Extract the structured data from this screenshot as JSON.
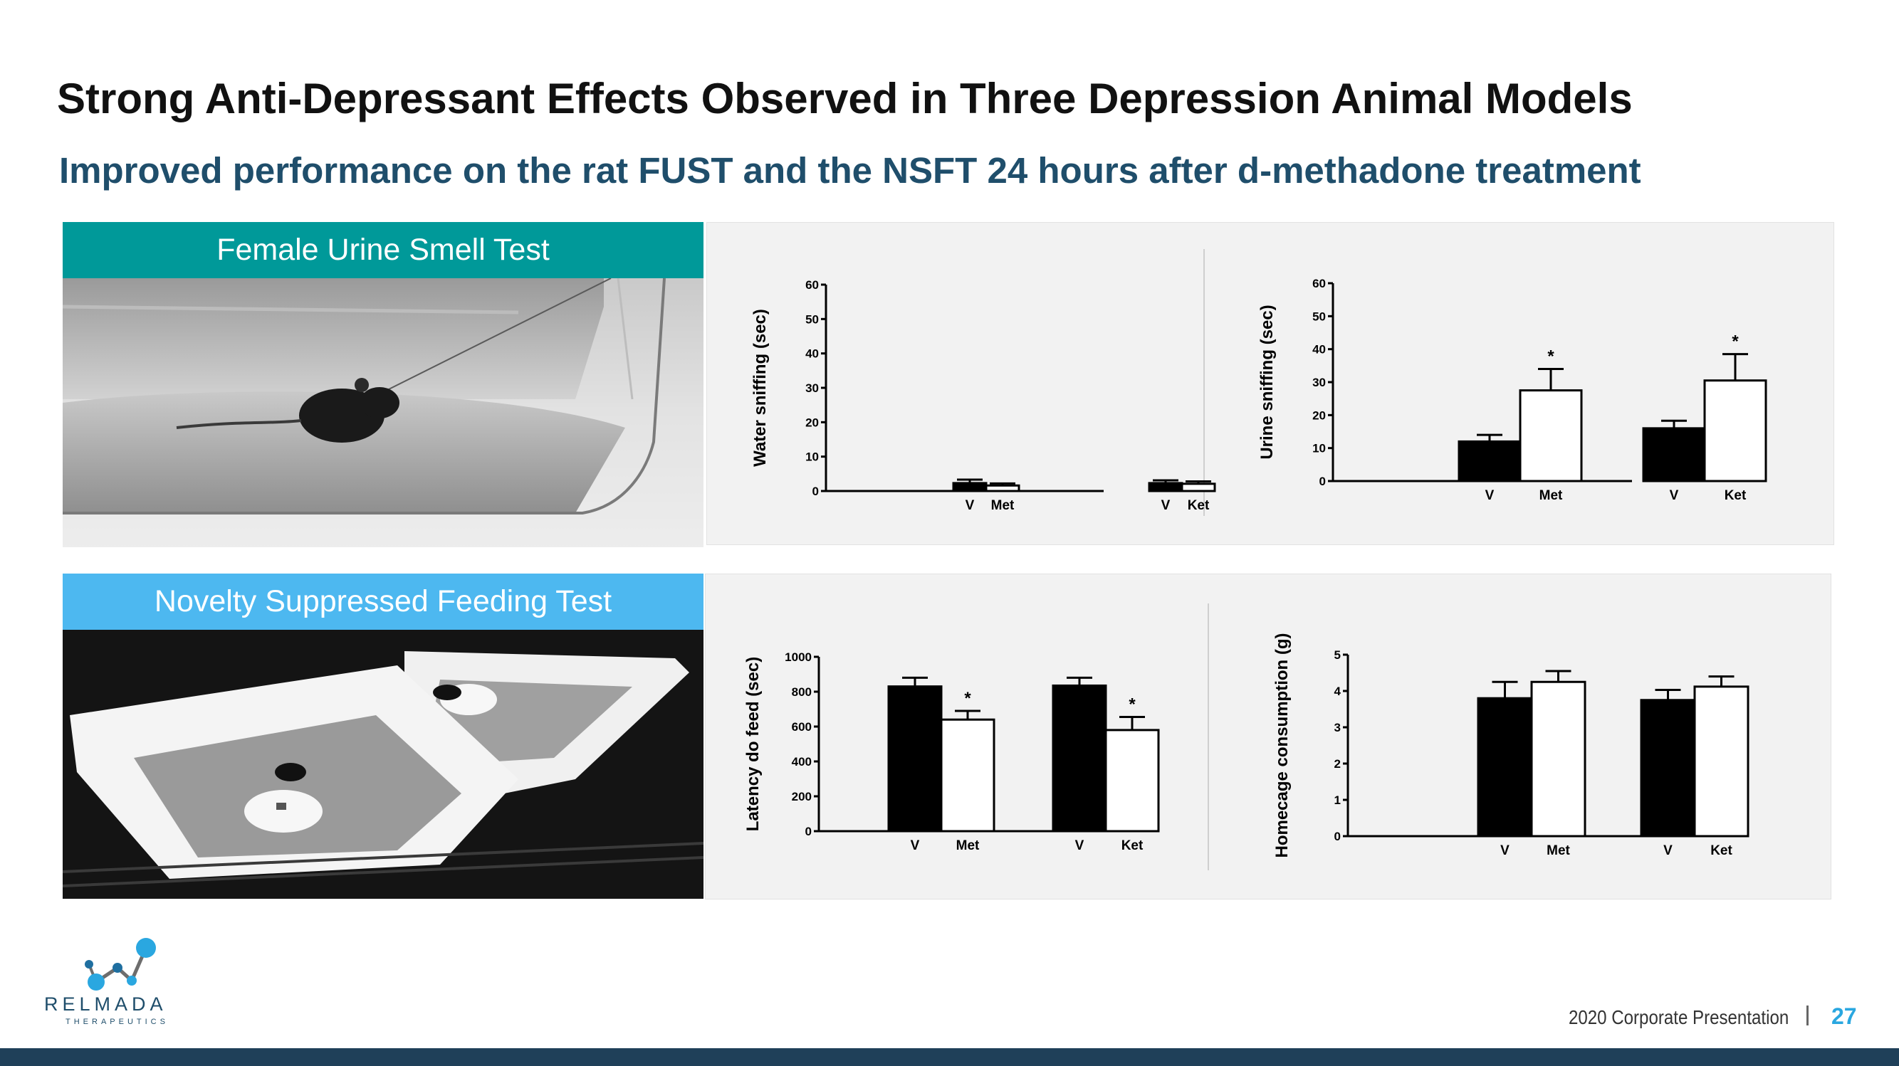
{
  "slide": {
    "title": "Strong Anti-Depressant Effects Observed in Three Depression Animal Models",
    "subtitle": "Improved performance on the rat FUST and the NSFT 24 hours after d-methadone treatment"
  },
  "panels": {
    "fust_label": "Female Urine Smell Test",
    "nsft_label": "Novelty Suppressed Feeding Test",
    "fust_color": "#009999",
    "nsft_color": "#4db8f0"
  },
  "chart_data": [
    {
      "type": "bar",
      "ylabel": "Water sniffing (sec)",
      "ylim": [
        0,
        60
      ],
      "yticks": [
        0,
        10,
        20,
        30,
        40,
        50,
        60
      ],
      "categories": [
        "V",
        "Met",
        "V",
        "Ket"
      ],
      "groups": [
        {
          "bars": [
            {
              "label": "V",
              "value": 2.3,
              "err": 1.0,
              "fill": "#000000"
            },
            {
              "label": "Met",
              "value": 1.6,
              "err": 0.6,
              "fill": "#ffffff"
            }
          ]
        },
        {
          "bars": [
            {
              "label": "V",
              "value": 2.3,
              "err": 0.8,
              "fill": "#000000"
            },
            {
              "label": "Ket",
              "value": 2.1,
              "err": 0.7,
              "fill": "#ffffff"
            }
          ]
        }
      ],
      "significance": []
    },
    {
      "type": "bar",
      "ylabel": "Urine sniffing (sec)",
      "ylim": [
        0,
        60
      ],
      "yticks": [
        0,
        10,
        20,
        30,
        40,
        50,
        60
      ],
      "categories": [
        "V",
        "Met",
        "V",
        "Ket"
      ],
      "groups": [
        {
          "bars": [
            {
              "label": "V",
              "value": 12,
              "err": 2,
              "fill": "#000000"
            },
            {
              "label": "Met",
              "value": 27.5,
              "err": 6.5,
              "fill": "#ffffff",
              "star": "*"
            }
          ]
        },
        {
          "bars": [
            {
              "label": "V",
              "value": 16,
              "err": 2.3,
              "fill": "#000000"
            },
            {
              "label": "Ket",
              "value": 30.5,
              "err": 8,
              "fill": "#ffffff",
              "star": "*"
            }
          ]
        }
      ]
    },
    {
      "type": "bar",
      "ylabel": "Latency do feed (sec)",
      "ylim": [
        0,
        1000
      ],
      "yticks": [
        0,
        200,
        400,
        600,
        800,
        1000
      ],
      "categories": [
        "V",
        "Met",
        "V",
        "Ket"
      ],
      "groups": [
        {
          "bars": [
            {
              "label": "V",
              "value": 830,
              "err": 50,
              "fill": "#000000"
            },
            {
              "label": "Met",
              "value": 640,
              "err": 50,
              "fill": "#ffffff",
              "star": "*"
            }
          ]
        },
        {
          "bars": [
            {
              "label": "V",
              "value": 835,
              "err": 45,
              "fill": "#000000"
            },
            {
              "label": "Ket",
              "value": 580,
              "err": 75,
              "fill": "#ffffff",
              "star": "*"
            }
          ]
        }
      ]
    },
    {
      "type": "bar",
      "ylabel": "Homecage consumption (g)",
      "ylim": [
        0,
        5
      ],
      "yticks": [
        0,
        1,
        2,
        3,
        4,
        5
      ],
      "categories": [
        "V",
        "Met",
        "V",
        "Ket"
      ],
      "groups": [
        {
          "bars": [
            {
              "label": "V",
              "value": 3.8,
              "err": 0.45,
              "fill": "#000000"
            },
            {
              "label": "Met",
              "value": 4.25,
              "err": 0.3,
              "fill": "#ffffff"
            }
          ]
        },
        {
          "bars": [
            {
              "label": "V",
              "value": 3.75,
              "err": 0.28,
              "fill": "#000000"
            },
            {
              "label": "Ket",
              "value": 4.12,
              "err": 0.28,
              "fill": "#ffffff"
            }
          ]
        }
      ]
    }
  ],
  "logo": {
    "word": "RELMADA",
    "sub": "THERAPEUTICS"
  },
  "footer": {
    "text": "2020 Corporate Presentation",
    "page": "27"
  }
}
